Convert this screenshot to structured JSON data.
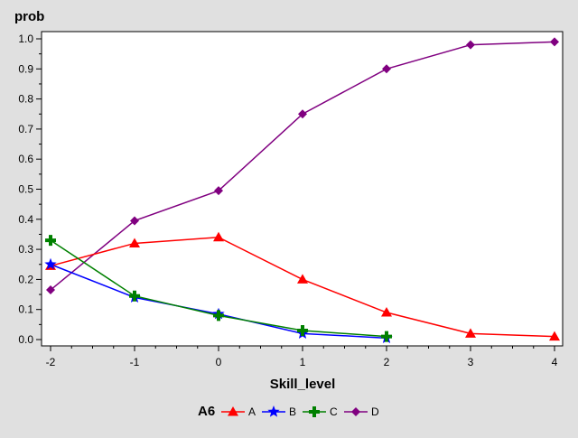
{
  "chart_data": {
    "type": "line",
    "ylabel": "prob",
    "xlabel": "Skill_level",
    "xlim": [
      -2,
      4
    ],
    "ylim": [
      0,
      1.0
    ],
    "x_ticks": [
      -2,
      -1,
      0,
      1,
      2,
      3,
      4
    ],
    "y_ticks": [
      0.0,
      0.1,
      0.2,
      0.3,
      0.4,
      0.5,
      0.6,
      0.7,
      0.8,
      0.9,
      1.0
    ],
    "y_tick_labels": [
      "0.0",
      "0.1",
      "0.2",
      "0.3",
      "0.4",
      "0.5",
      "0.6",
      "0.7",
      "0.8",
      "0.9",
      "1.0"
    ],
    "x_tick_labels": [
      "-2",
      "-1",
      "0",
      "1",
      "2",
      "3",
      "4"
    ],
    "grid": false,
    "legend": {
      "title": "A6",
      "placement": "bottom-center"
    },
    "series": [
      {
        "name": "A",
        "color": "#ff0000",
        "marker": "triangle",
        "x": [
          -2,
          -1,
          0,
          1,
          2,
          3,
          4
        ],
        "y": [
          0.245,
          0.32,
          0.34,
          0.2,
          0.09,
          0.02,
          0.01
        ]
      },
      {
        "name": "B",
        "color": "#0000ff",
        "marker": "star",
        "x": [
          -2,
          -1,
          0,
          1,
          2
        ],
        "y": [
          0.25,
          0.14,
          0.085,
          0.02,
          0.005
        ]
      },
      {
        "name": "C",
        "color": "#008000",
        "marker": "plus",
        "x": [
          -2,
          -1,
          0,
          1,
          2
        ],
        "y": [
          0.33,
          0.145,
          0.08,
          0.03,
          0.01
        ]
      },
      {
        "name": "D",
        "color": "#800080",
        "marker": "diamond",
        "x": [
          -2,
          -1,
          0,
          1,
          2,
          3,
          4
        ],
        "y": [
          0.165,
          0.395,
          0.495,
          0.75,
          0.9,
          0.98,
          0.99
        ]
      }
    ]
  }
}
